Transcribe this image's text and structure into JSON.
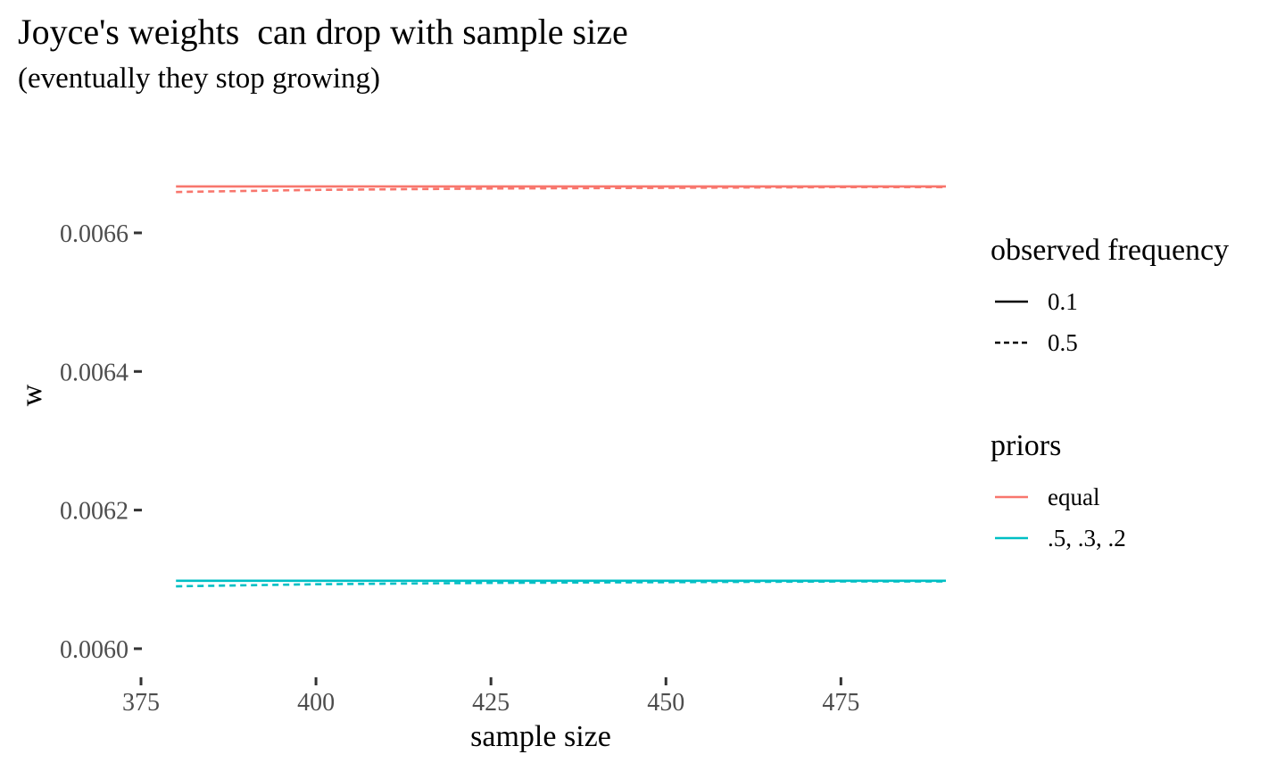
{
  "chart_data": {
    "type": "line",
    "title": "Joyce's weights  can drop with sample size",
    "subtitle": "(eventually they stop growing)",
    "xlabel": "sample size",
    "ylabel": "w",
    "xlim": [
      375,
      490
    ],
    "ylim": [
      0.00596,
      0.00673
    ],
    "x_ticks": [
      375,
      400,
      425,
      450,
      475
    ],
    "x_tick_labels": [
      "375",
      "400",
      "425",
      "450",
      "475"
    ],
    "y_ticks": [
      0.006,
      0.0062,
      0.0064,
      0.0066
    ],
    "y_tick_labels": [
      "0.0060",
      "0.0062",
      "0.0064",
      "0.0066"
    ],
    "grid": false,
    "legend_placement": "right",
    "legends": [
      {
        "title": "observed frequency",
        "aesthetic": "linetype",
        "entries": [
          {
            "label": "0.1",
            "linetype": "solid"
          },
          {
            "label": "0.5",
            "linetype": "dashed"
          }
        ]
      },
      {
        "title": "priors",
        "aesthetic": "color",
        "entries": [
          {
            "label": "equal",
            "color": "#F8766D"
          },
          {
            "label": ".5, .3, .2",
            "color": "#00BFC4"
          }
        ]
      }
    ],
    "series": [
      {
        "priors": "equal",
        "observed_frequency": "0.1",
        "color": "#F8766D",
        "linetype": "solid",
        "x": [
          380,
          490
        ],
        "y": [
          0.006667,
          0.006667
        ]
      },
      {
        "priors": "equal",
        "observed_frequency": "0.5",
        "color": "#F8766D",
        "linetype": "dashed",
        "x": [
          380,
          400,
          425,
          450,
          475,
          490
        ],
        "y": [
          0.006659,
          0.006662,
          0.006664,
          0.006665,
          0.006666,
          0.006666
        ]
      },
      {
        "priors": ".5, .3, .2",
        "observed_frequency": "0.1",
        "color": "#00BFC4",
        "linetype": "solid",
        "x": [
          380,
          490
        ],
        "y": [
          0.006098,
          0.006098
        ]
      },
      {
        "priors": ".5, .3, .2",
        "observed_frequency": "0.5",
        "color": "#00BFC4",
        "linetype": "dashed",
        "x": [
          380,
          400,
          425,
          450,
          475,
          490
        ],
        "y": [
          0.00609,
          0.006093,
          0.006095,
          0.006096,
          0.006097,
          0.006097
        ]
      }
    ]
  }
}
